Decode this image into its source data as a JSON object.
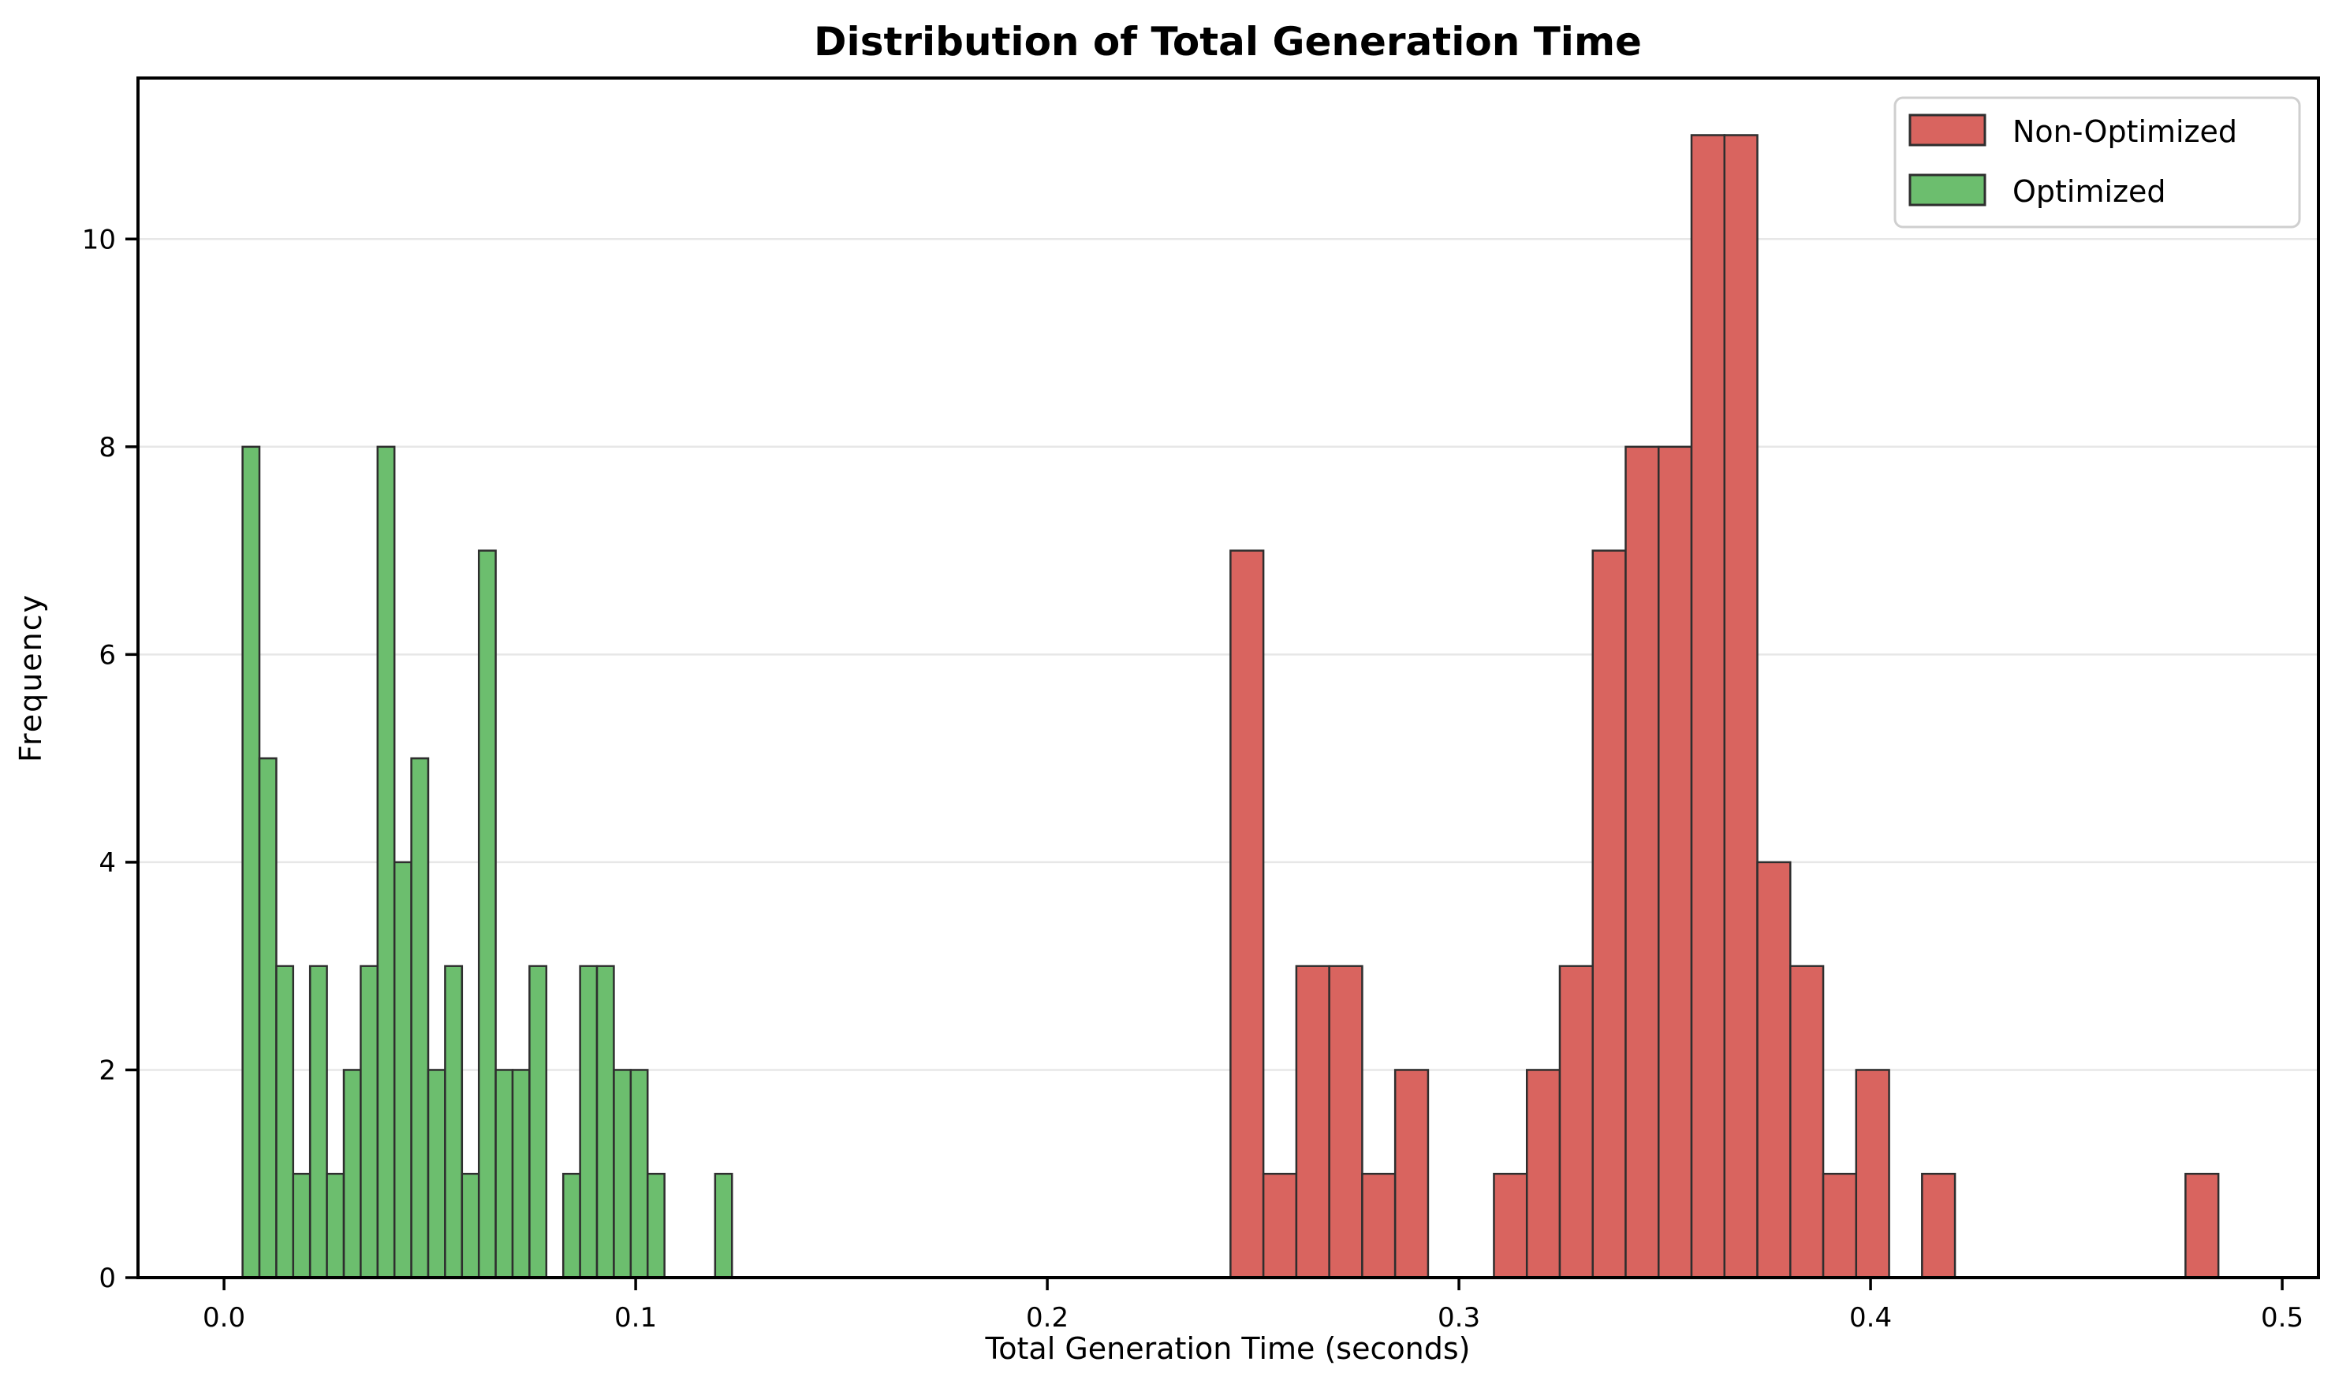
{
  "title": "Distribution of Total Generation Time",
  "axes": {
    "xlabel": "Total Generation Time (seconds)",
    "ylabel": "Frequency"
  },
  "legend": {
    "entries": [
      {
        "label": "Non-Optimized",
        "color": "#d9645f"
      },
      {
        "label": "Optimized",
        "color": "#6cbe6e"
      }
    ]
  },
  "colors": {
    "bar_edge": "#2e2e2e",
    "gridline": "#e7e7e7",
    "spine": "#000000",
    "background": "#ffffff",
    "legend_border": "#cfcfcf"
  },
  "chart_data": {
    "type": "bar",
    "subtype": "histogram",
    "title": "Distribution of Total Generation Time",
    "xlabel": "Total Generation Time (seconds)",
    "ylabel": "Frequency",
    "xlim": [
      -0.0209,
      0.5088
    ],
    "ylim": [
      0,
      11.55
    ],
    "grid": "horizontal-y",
    "legend_position": "upper right",
    "x_ticks": [
      0.0,
      0.1,
      0.2,
      0.3,
      0.4,
      0.5
    ],
    "x_tick_labels": [
      "0.0",
      "0.1",
      "0.2",
      "0.3",
      "0.4",
      "0.5"
    ],
    "y_ticks": [
      0,
      2,
      4,
      6,
      8,
      10
    ],
    "y_tick_labels": [
      "0",
      "2",
      "4",
      "6",
      "8",
      "10"
    ],
    "series": [
      {
        "name": "Non-Optimized",
        "color": "#d9645f",
        "bin_start": 0.2445,
        "bin_width": 0.008,
        "counts": [
          7,
          1,
          3,
          3,
          1,
          2,
          0,
          0,
          1,
          2,
          3,
          7,
          8,
          8,
          11,
          11,
          4,
          3,
          1,
          2,
          0,
          1,
          0,
          0,
          0,
          0,
          0,
          0,
          0,
          1
        ]
      },
      {
        "name": "Optimized",
        "color": "#6cbe6e",
        "bin_start": 0.0045,
        "bin_width": 0.0041,
        "counts": [
          8,
          5,
          3,
          1,
          3,
          1,
          2,
          3,
          8,
          4,
          5,
          2,
          3,
          1,
          7,
          2,
          2,
          3,
          0,
          1,
          3,
          3,
          2,
          2,
          1,
          0,
          0,
          0,
          1
        ]
      }
    ]
  }
}
